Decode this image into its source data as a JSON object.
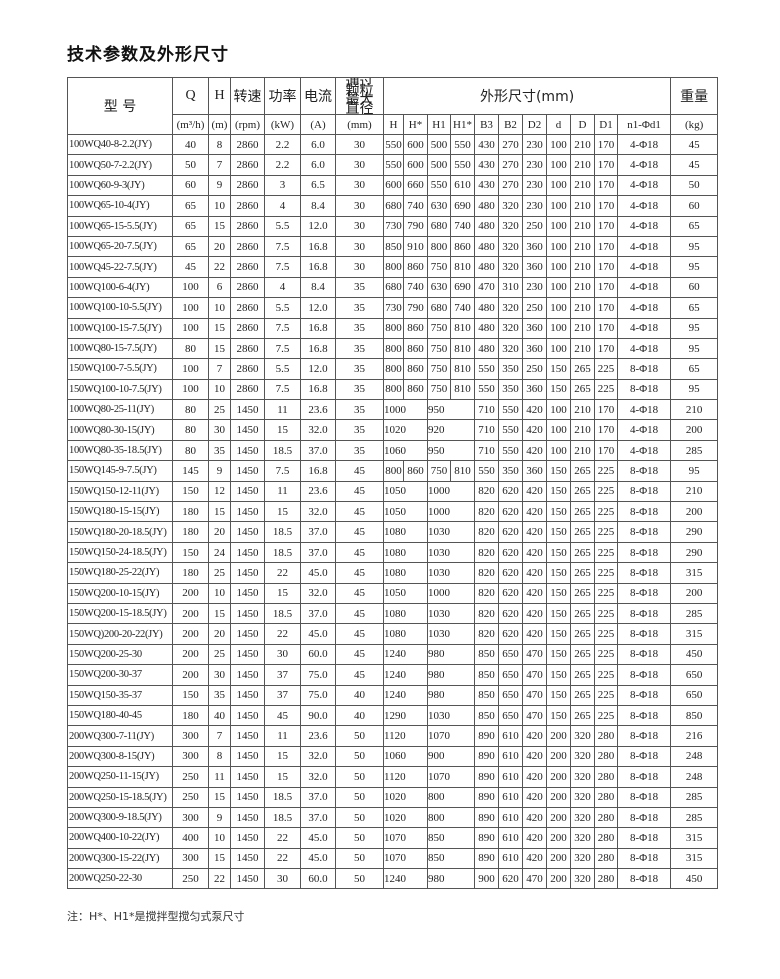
{
  "title": "技术参数及外形尺寸",
  "header": {
    "model": "型 号",
    "q": "Q",
    "h": "H",
    "speed": "转速",
    "power": "功率",
    "current": "电流",
    "particle": "通过颗粒最大直径",
    "dims": "外形尺寸(mm)",
    "weight": "重量",
    "units": [
      "(m³/h)",
      "(m)",
      "(rpm)",
      "(kW)",
      "(A)",
      "(mm)"
    ],
    "dim_cols": [
      "H",
      "H*",
      "H1",
      "H1*",
      "B3",
      "B2",
      "D2",
      "d",
      "D",
      "D1",
      "n1-Φd1"
    ],
    "weight_unit": "(kg)"
  },
  "rows": [
    [
      "100WQ40-8-2.2(JY)",
      "40",
      "8",
      "2860",
      "2.2",
      "6.0",
      "30",
      "550",
      "600",
      "500",
      "550",
      "430",
      "270",
      "230",
      "100",
      "210",
      "170",
      "4-Φ18",
      "45"
    ],
    [
      "100WQ50-7-2.2(JY)",
      "50",
      "7",
      "2860",
      "2.2",
      "6.0",
      "30",
      "550",
      "600",
      "500",
      "550",
      "430",
      "270",
      "230",
      "100",
      "210",
      "170",
      "4-Φ18",
      "45"
    ],
    [
      "100WQ60-9-3(JY)",
      "60",
      "9",
      "2860",
      "3",
      "6.5",
      "30",
      "600",
      "660",
      "550",
      "610",
      "430",
      "270",
      "230",
      "100",
      "210",
      "170",
      "4-Φ18",
      "50"
    ],
    [
      "100WQ65-10-4(JY)",
      "65",
      "10",
      "2860",
      "4",
      "8.4",
      "30",
      "680",
      "740",
      "630",
      "690",
      "480",
      "320",
      "230",
      "100",
      "210",
      "170",
      "4-Φ18",
      "60"
    ],
    [
      "100WQ65-15-5.5(JY)",
      "65",
      "15",
      "2860",
      "5.5",
      "12.0",
      "30",
      "730",
      "790",
      "680",
      "740",
      "480",
      "320",
      "250",
      "100",
      "210",
      "170",
      "4-Φ18",
      "65"
    ],
    [
      "100WQ65-20-7.5(JY)",
      "65",
      "20",
      "2860",
      "7.5",
      "16.8",
      "30",
      "850",
      "910",
      "800",
      "860",
      "480",
      "320",
      "360",
      "100",
      "210",
      "170",
      "4-Φ18",
      "95"
    ],
    [
      "100WQ45-22-7.5(JY)",
      "45",
      "22",
      "2860",
      "7.5",
      "16.8",
      "30",
      "800",
      "860",
      "750",
      "810",
      "480",
      "320",
      "360",
      "100",
      "210",
      "170",
      "4-Φ18",
      "95"
    ],
    [
      "100WQ100-6-4(JY)",
      "100",
      "6",
      "2860",
      "4",
      "8.4",
      "35",
      "680",
      "740",
      "630",
      "690",
      "470",
      "310",
      "230",
      "100",
      "210",
      "170",
      "4-Φ18",
      "60"
    ],
    [
      "100WQ100-10-5.5(JY)",
      "100",
      "10",
      "2860",
      "5.5",
      "12.0",
      "35",
      "730",
      "790",
      "680",
      "740",
      "480",
      "320",
      "250",
      "100",
      "210",
      "170",
      "4-Φ18",
      "65"
    ],
    [
      "100WQ100-15-7.5(JY)",
      "100",
      "15",
      "2860",
      "7.5",
      "16.8",
      "35",
      "800",
      "860",
      "750",
      "810",
      "480",
      "320",
      "360",
      "100",
      "210",
      "170",
      "4-Φ18",
      "95"
    ],
    [
      "100WQ80-15-7.5(JY)",
      "80",
      "15",
      "2860",
      "7.5",
      "16.8",
      "35",
      "800",
      "860",
      "750",
      "810",
      "480",
      "320",
      "360",
      "100",
      "210",
      "170",
      "4-Φ18",
      "95"
    ],
    [
      "150WQ100-7-5.5(JY)",
      "100",
      "7",
      "2860",
      "5.5",
      "12.0",
      "35",
      "800",
      "860",
      "750",
      "810",
      "550",
      "350",
      "250",
      "150",
      "265",
      "225",
      "8-Φ18",
      "65"
    ],
    [
      "150WQ100-10-7.5(JY)",
      "100",
      "10",
      "2860",
      "7.5",
      "16.8",
      "35",
      "800",
      "860",
      "750",
      "810",
      "550",
      "350",
      "360",
      "150",
      "265",
      "225",
      "8-Φ18",
      "95"
    ],
    [
      "100WQ80-25-11(JY)",
      "80",
      "25",
      "1450",
      "11",
      "23.6",
      "35",
      "1000",
      null,
      "950",
      null,
      "710",
      "550",
      "420",
      "100",
      "210",
      "170",
      "4-Φ18",
      "210"
    ],
    [
      "100WQ80-30-15(JY)",
      "80",
      "30",
      "1450",
      "15",
      "32.0",
      "35",
      "1020",
      null,
      "920",
      null,
      "710",
      "550",
      "420",
      "100",
      "210",
      "170",
      "4-Φ18",
      "200"
    ],
    [
      "100WQ80-35-18.5(JY)",
      "80",
      "35",
      "1450",
      "18.5",
      "37.0",
      "35",
      "1060",
      null,
      "950",
      null,
      "710",
      "550",
      "420",
      "100",
      "210",
      "170",
      "4-Φ18",
      "285"
    ],
    [
      "150WQ145-9-7.5(JY)",
      "145",
      "9",
      "1450",
      "7.5",
      "16.8",
      "45",
      "800",
      "860",
      "750",
      "810",
      "550",
      "350",
      "360",
      "150",
      "265",
      "225",
      "8-Φ18",
      "95"
    ],
    [
      "150WQ150-12-11(JY)",
      "150",
      "12",
      "1450",
      "11",
      "23.6",
      "45",
      "1050",
      null,
      "1000",
      null,
      "820",
      "620",
      "420",
      "150",
      "265",
      "225",
      "8-Φ18",
      "210"
    ],
    [
      "150WQ180-15-15(JY)",
      "180",
      "15",
      "1450",
      "15",
      "32.0",
      "45",
      "1050",
      null,
      "1000",
      null,
      "820",
      "620",
      "420",
      "150",
      "265",
      "225",
      "8-Φ18",
      "200"
    ],
    [
      "150WQ180-20-18.5(JY)",
      "180",
      "20",
      "1450",
      "18.5",
      "37.0",
      "45",
      "1080",
      null,
      "1030",
      null,
      "820",
      "620",
      "420",
      "150",
      "265",
      "225",
      "8-Φ18",
      "290"
    ],
    [
      "150WQ150-24-18.5(JY)",
      "150",
      "24",
      "1450",
      "18.5",
      "37.0",
      "45",
      "1080",
      null,
      "1030",
      null,
      "820",
      "620",
      "420",
      "150",
      "265",
      "225",
      "8-Φ18",
      "290"
    ],
    [
      "150WQ180-25-22(JY)",
      "180",
      "25",
      "1450",
      "22",
      "45.0",
      "45",
      "1080",
      null,
      "1030",
      null,
      "820",
      "620",
      "420",
      "150",
      "265",
      "225",
      "8-Φ18",
      "315"
    ],
    [
      "150WQ200-10-15(JY)",
      "200",
      "10",
      "1450",
      "15",
      "32.0",
      "45",
      "1050",
      null,
      "1000",
      null,
      "820",
      "620",
      "420",
      "150",
      "265",
      "225",
      "8-Φ18",
      "200"
    ],
    [
      "150WQ200-15-18.5(JY)",
      "200",
      "15",
      "1450",
      "18.5",
      "37.0",
      "45",
      "1080",
      null,
      "1030",
      null,
      "820",
      "620",
      "420",
      "150",
      "265",
      "225",
      "8-Φ18",
      "285"
    ],
    [
      "150WQ)200-20-22(JY)",
      "200",
      "20",
      "1450",
      "22",
      "45.0",
      "45",
      "1080",
      null,
      "1030",
      null,
      "820",
      "620",
      "420",
      "150",
      "265",
      "225",
      "8-Φ18",
      "315"
    ],
    [
      "150WQ200-25-30",
      "200",
      "25",
      "1450",
      "30",
      "60.0",
      "45",
      "1240",
      null,
      "980",
      null,
      "850",
      "650",
      "470",
      "150",
      "265",
      "225",
      "8-Φ18",
      "450"
    ],
    [
      "150WQ200-30-37",
      "200",
      "30",
      "1450",
      "37",
      "75.0",
      "45",
      "1240",
      null,
      "980",
      null,
      "850",
      "650",
      "470",
      "150",
      "265",
      "225",
      "8-Φ18",
      "650"
    ],
    [
      "150WQ150-35-37",
      "150",
      "35",
      "1450",
      "37",
      "75.0",
      "40",
      "1240",
      null,
      "980",
      null,
      "850",
      "650",
      "470",
      "150",
      "265",
      "225",
      "8-Φ18",
      "650"
    ],
    [
      "150WQ180-40-45",
      "180",
      "40",
      "1450",
      "45",
      "90.0",
      "40",
      "1290",
      null,
      "1030",
      null,
      "850",
      "650",
      "470",
      "150",
      "265",
      "225",
      "8-Φ18",
      "850"
    ],
    [
      "200WQ300-7-11(JY)",
      "300",
      "7",
      "1450",
      "11",
      "23.6",
      "50",
      "1120",
      null,
      "1070",
      null,
      "890",
      "610",
      "420",
      "200",
      "320",
      "280",
      "8-Φ18",
      "216"
    ],
    [
      "200WQ300-8-15(JY)",
      "300",
      "8",
      "1450",
      "15",
      "32.0",
      "50",
      "1060",
      null,
      "900",
      null,
      "890",
      "610",
      "420",
      "200",
      "320",
      "280",
      "8-Φ18",
      "248"
    ],
    [
      "200WQ250-11-15(JY)",
      "250",
      "11",
      "1450",
      "15",
      "32.0",
      "50",
      "1120",
      null,
      "1070",
      null,
      "890",
      "610",
      "420",
      "200",
      "320",
      "280",
      "8-Φ18",
      "248"
    ],
    [
      "200WQ250-15-18.5(JY)",
      "250",
      "15",
      "1450",
      "18.5",
      "37.0",
      "50",
      "1020",
      null,
      "800",
      null,
      "890",
      "610",
      "420",
      "200",
      "320",
      "280",
      "8-Φ18",
      "285"
    ],
    [
      "200WQ300-9-18.5(JY)",
      "300",
      "9",
      "1450",
      "18.5",
      "37.0",
      "50",
      "1020",
      null,
      "800",
      null,
      "890",
      "610",
      "420",
      "200",
      "320",
      "280",
      "8-Φ18",
      "285"
    ],
    [
      "200WQ400-10-22(JY)",
      "400",
      "10",
      "1450",
      "22",
      "45.0",
      "50",
      "1070",
      null,
      "850",
      null,
      "890",
      "610",
      "420",
      "200",
      "320",
      "280",
      "8-Φ18",
      "315"
    ],
    [
      "200WQ300-15-22(JY)",
      "300",
      "15",
      "1450",
      "22",
      "45.0",
      "50",
      "1070",
      null,
      "850",
      null,
      "890",
      "610",
      "420",
      "200",
      "320",
      "280",
      "8-Φ18",
      "315"
    ],
    [
      "200WQ250-22-30",
      "250",
      "22",
      "1450",
      "30",
      "60.0",
      "50",
      "1240",
      null,
      "980",
      null,
      "900",
      "620",
      "470",
      "200",
      "320",
      "280",
      "8-Φ18",
      "450"
    ]
  ],
  "note": "注：H*、H1*是搅拌型搅匀式泵尺寸"
}
